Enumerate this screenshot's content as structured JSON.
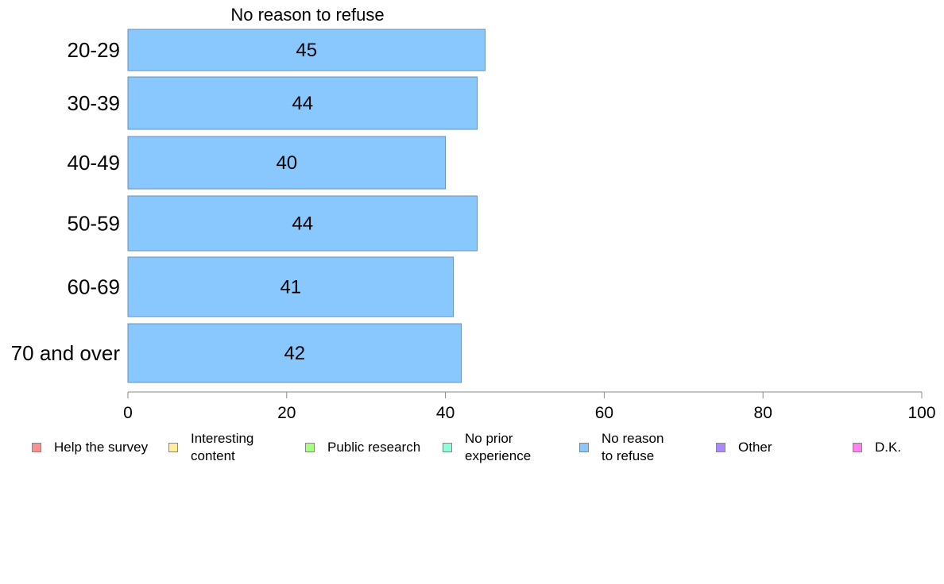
{
  "chart_data": {
    "type": "bar",
    "orientation": "horizontal",
    "title": "No reason to refuse",
    "categories": [
      "20-29",
      "30-39",
      "40-49",
      "50-59",
      "60-69",
      "70 and over"
    ],
    "values": [
      45,
      44,
      40,
      44,
      41,
      42
    ],
    "value_labels": [
      "45",
      "44",
      "40",
      "44",
      "41",
      "42"
    ],
    "bar_color": "#88c8ff",
    "xlim": [
      0,
      100
    ],
    "xticks": [
      "0",
      "20",
      "40",
      "60",
      "80",
      "100"
    ],
    "grid": false,
    "legend_position": "bottom"
  },
  "legend": [
    {
      "label": "Help the survey",
      "color": "#ff8e8e"
    },
    {
      "label": "Interesting\ncontent",
      "color": "#ffee99"
    },
    {
      "label": "Public research",
      "color": "#a6ff80"
    },
    {
      "label": "No prior\nexperience",
      "color": "#8effd8"
    },
    {
      "label": "No reason\nto refuse",
      "color": "#88c8ff"
    },
    {
      "label": "Other",
      "color": "#aa88ff"
    },
    {
      "label": "D.K.",
      "color": "#ff80ee"
    }
  ]
}
